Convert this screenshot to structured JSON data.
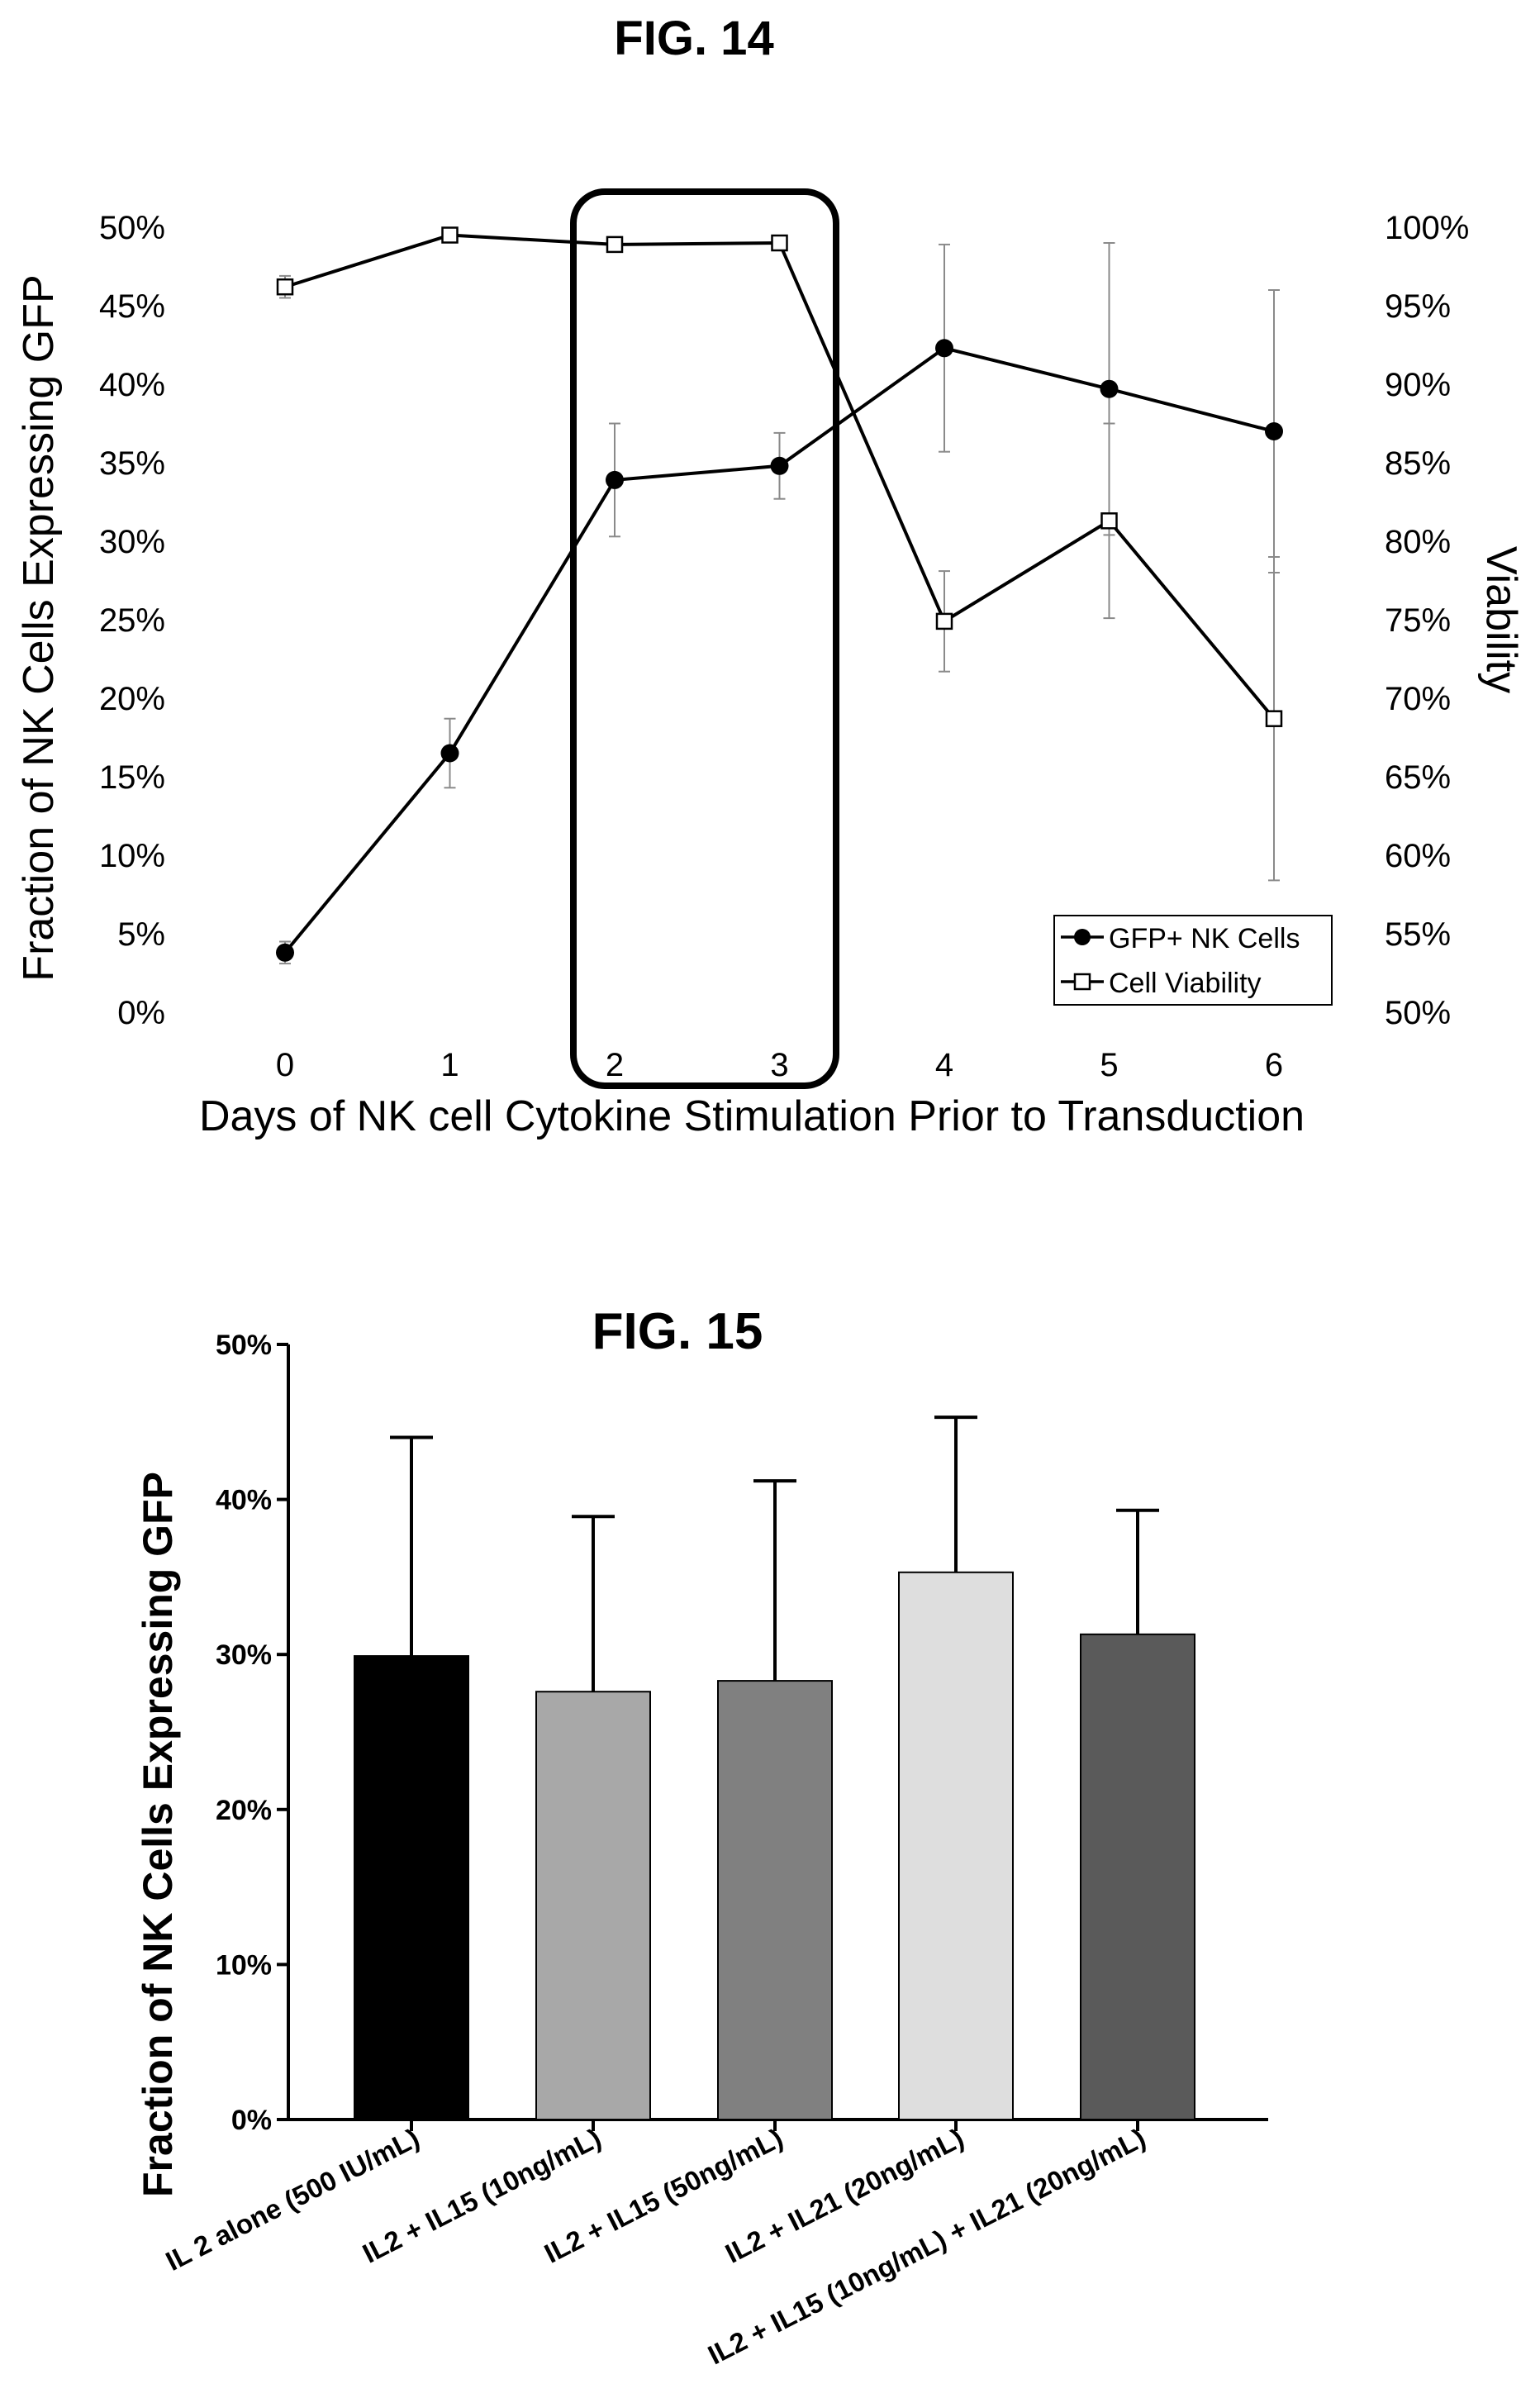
{
  "fig14": {
    "title": "FIG. 14",
    "xlabel": "Days of NK cell Cytokine Stimulation Prior to Transduction",
    "ylabel_left": "Fraction of NK Cells Expressing GFP",
    "ylabel_right": "Viability",
    "left_ticks": [
      "0%",
      "5%",
      "10%",
      "15%",
      "20%",
      "25%",
      "30%",
      "35%",
      "40%",
      "45%",
      "50%"
    ],
    "right_ticks": [
      "50%",
      "55%",
      "60%",
      "65%",
      "70%",
      "75%",
      "80%",
      "85%",
      "90%",
      "95%",
      "100%"
    ],
    "x_ticks": [
      "0",
      "1",
      "2",
      "3",
      "4",
      "5",
      "6"
    ],
    "legend": [
      "GFP+ NK Cells",
      "Cell Viability"
    ],
    "highlight_days": [
      2,
      3
    ]
  },
  "fig15": {
    "title": "FIG. 15",
    "ylabel": "Fraction of NK Cells Expressing GFP",
    "y_ticks": [
      "0%",
      "10%",
      "20%",
      "30%",
      "40%",
      "50%"
    ],
    "categories": [
      "IL 2 alone (500 IU/mL)",
      "IL2 + IL15 (10ng/mL)",
      "IL2 + IL15 (50ng/mL)",
      "IL2 + IL21 (20ng/mL)",
      "IL2 + IL15 (10ng/mL) + IL21 (20ng/mL)"
    ],
    "bar_colors": [
      "#000000",
      "#a8a8a8",
      "#808080",
      "#dedede",
      "#5a5a5a"
    ]
  },
  "chart_data": [
    {
      "type": "line",
      "title": "FIG. 14",
      "xlabel": "Days of NK cell Cytokine Stimulation Prior to Transduction",
      "ylabel": "Fraction of NK Cells Expressing GFP",
      "ylabel_right": "Viability",
      "x": [
        0,
        1,
        2,
        3,
        4,
        5,
        6
      ],
      "ylim": [
        0,
        50
      ],
      "ylim_right": [
        50,
        100
      ],
      "legend_position": "bottom-right",
      "series": [
        {
          "name": "GFP+ NK Cells",
          "axis": "left",
          "marker": "filled-circle",
          "values": [
            3.8,
            16.5,
            33.9,
            34.8,
            42.3,
            39.7,
            37.0
          ],
          "error": [
            0.7,
            2.2,
            3.6,
            2.1,
            6.6,
            9.3,
            9.0
          ]
        },
        {
          "name": "Cell Viability",
          "axis": "right",
          "marker": "open-square",
          "values": [
            96.2,
            99.5,
            98.9,
            99.0,
            74.9,
            81.3,
            68.7
          ],
          "error": [
            0.7,
            0.0,
            0.0,
            0.0,
            3.2,
            6.2,
            10.3
          ]
        }
      ]
    },
    {
      "type": "bar",
      "title": "FIG. 15",
      "ylabel": "Fraction of NK Cells Expressing GFP",
      "ylim": [
        0,
        50
      ],
      "categories": [
        "IL 2 alone (500 IU/mL)",
        "IL2 + IL15 (10ng/mL)",
        "IL2 + IL15 (50ng/mL)",
        "IL2 + IL21 (20ng/mL)",
        "IL2 + IL15 (10ng/mL) + IL21 (20ng/mL)"
      ],
      "values": [
        29.9,
        27.6,
        28.3,
        35.3,
        31.3
      ],
      "error_upper": [
        44.0,
        38.9,
        41.2,
        45.3,
        39.3
      ]
    }
  ]
}
